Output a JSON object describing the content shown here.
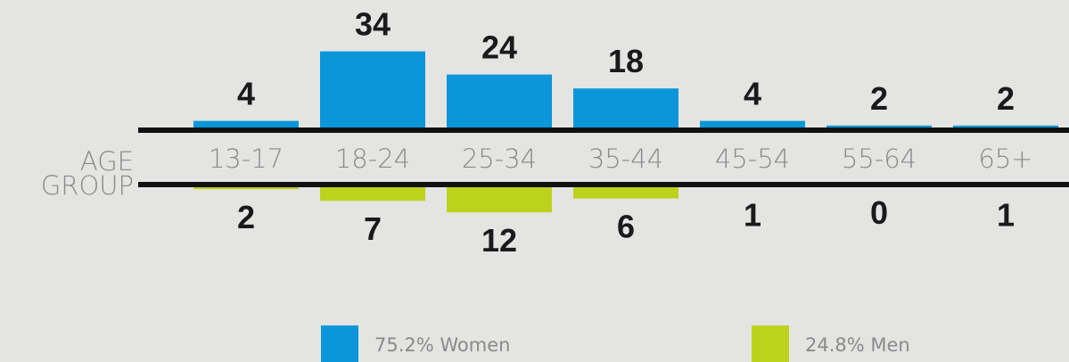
{
  "chart_data": {
    "type": "butterfly-bar",
    "x_label": "AGE GROUP",
    "categories": [
      "13-17",
      "18-24",
      "25-34",
      "35-44",
      "45-54",
      "55-64",
      "65+"
    ],
    "series": [
      {
        "name": "75.2% Women",
        "color": "#0a96d8",
        "values": [
          4,
          34,
          24,
          18,
          4,
          2,
          2
        ]
      },
      {
        "name": "24.8% Men",
        "color": "#bcd31e",
        "values": [
          2,
          7,
          12,
          6,
          1,
          0,
          1
        ]
      }
    ]
  }
}
